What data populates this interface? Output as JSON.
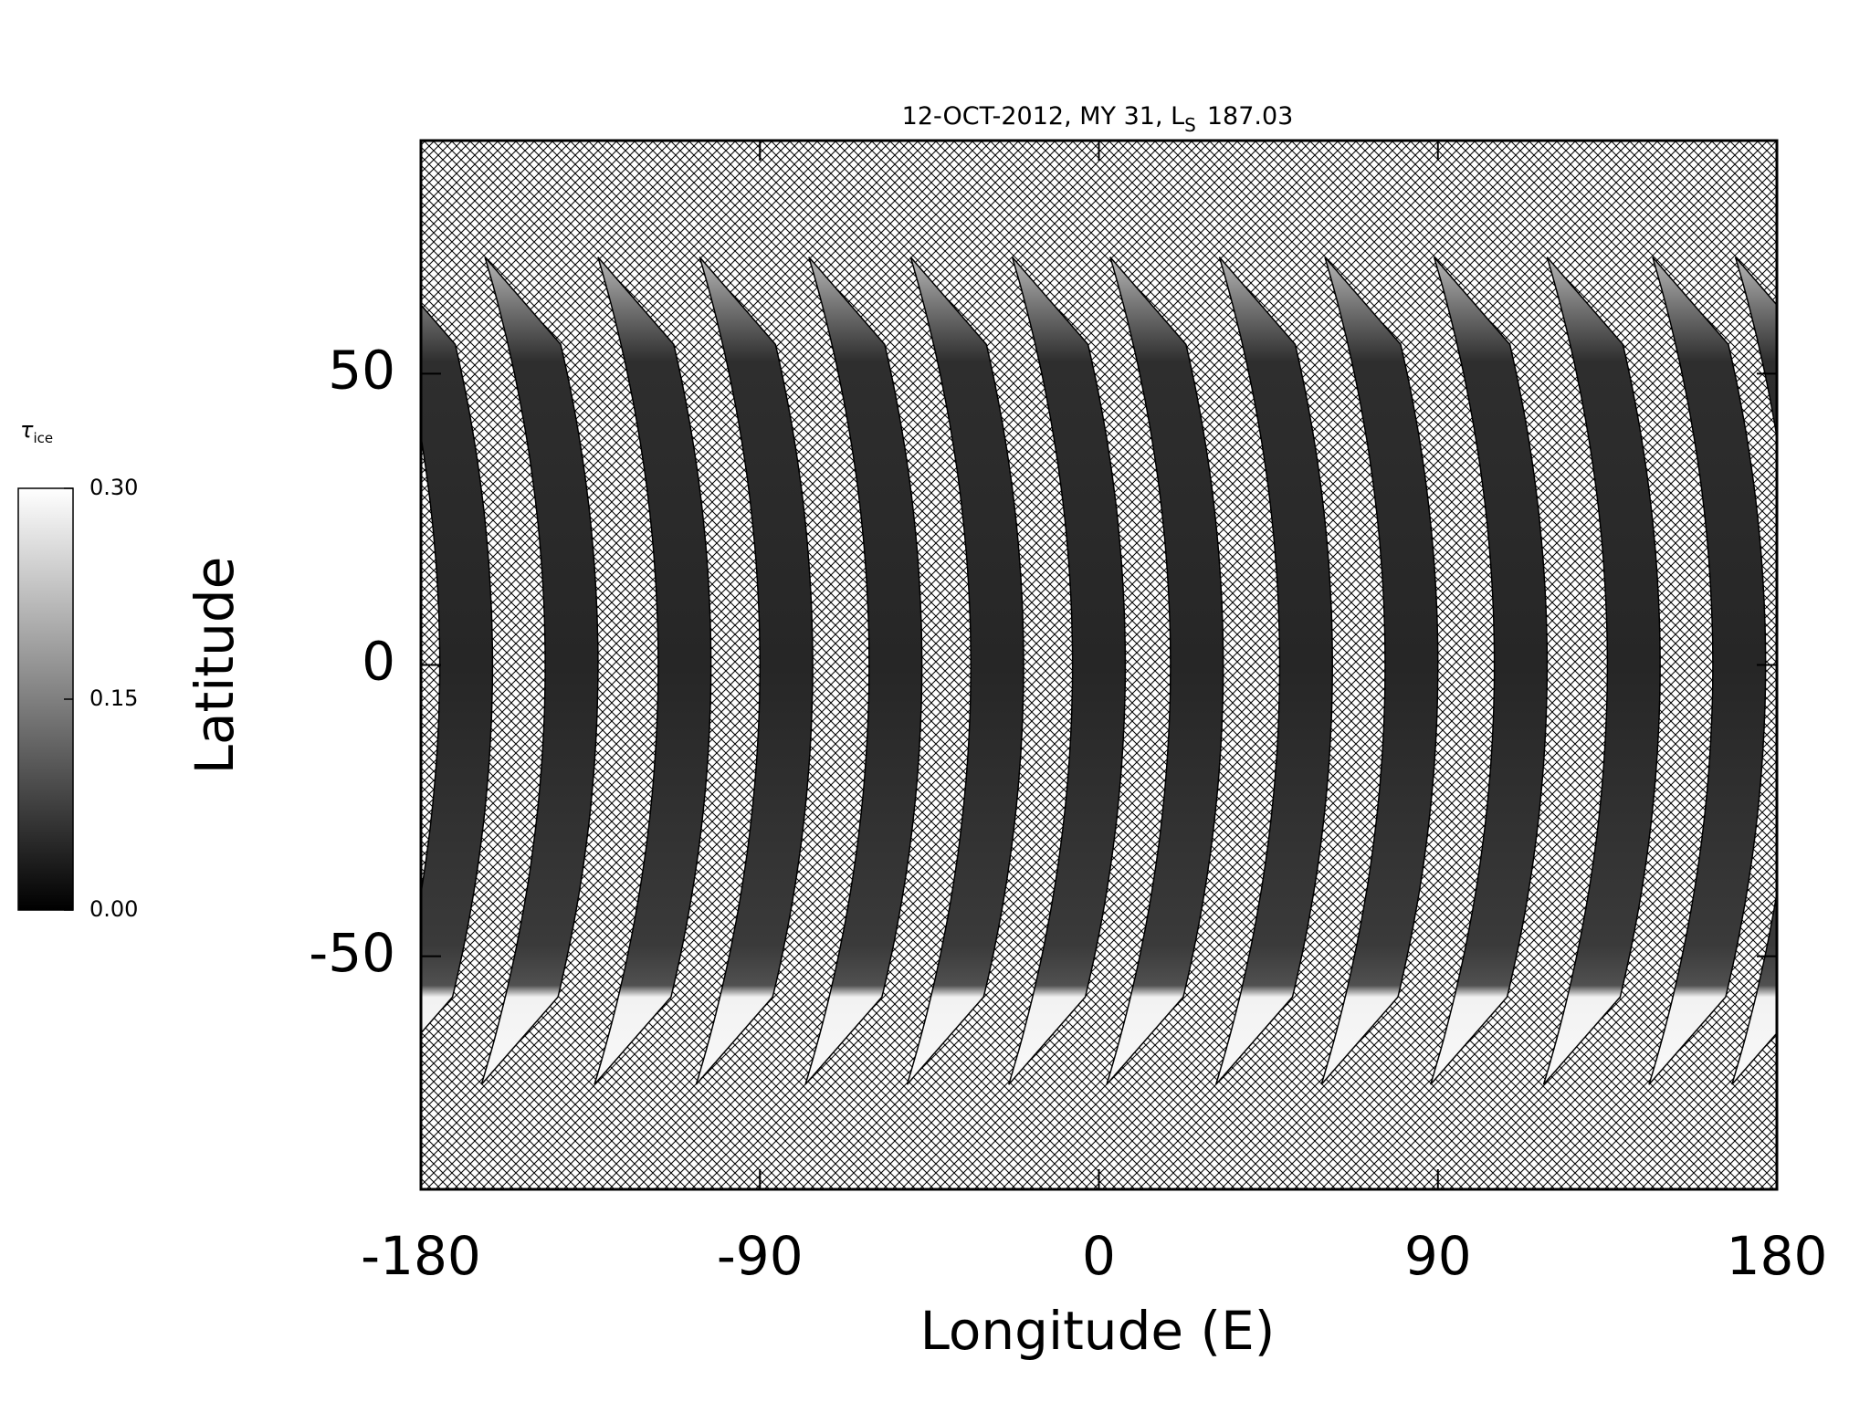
{
  "chart_data": {
    "type": "swath_map",
    "title": {
      "text": "12-OCT-2012, MY 31,  L",
      "subscript": "S",
      "suffix": "187.03"
    },
    "xlabel": "Longitude (E)",
    "ylabel": "Latitude",
    "xlim": [
      -180,
      180
    ],
    "ylim": [
      -90,
      90
    ],
    "xticks": [
      -180,
      -90,
      0,
      90,
      180
    ],
    "yticks": [
      -50,
      0,
      50
    ],
    "swaths": {
      "x": [
        -168,
        -140,
        -110,
        -83,
        -54,
        -27,
        0,
        26,
        55,
        83,
        112,
        142,
        170
      ]
    },
    "colorbar": {
      "label": "τ",
      "label_subscript": "ice",
      "lim": [
        0,
        0.3
      ],
      "ticks": [
        {
          "value": 0,
          "label": "0.00"
        },
        {
          "value": 0.15,
          "label": "0.15"
        },
        {
          "value": 0.3,
          "label": "0.30"
        }
      ],
      "colors": [
        "#000000",
        "#ffffff"
      ]
    }
  }
}
